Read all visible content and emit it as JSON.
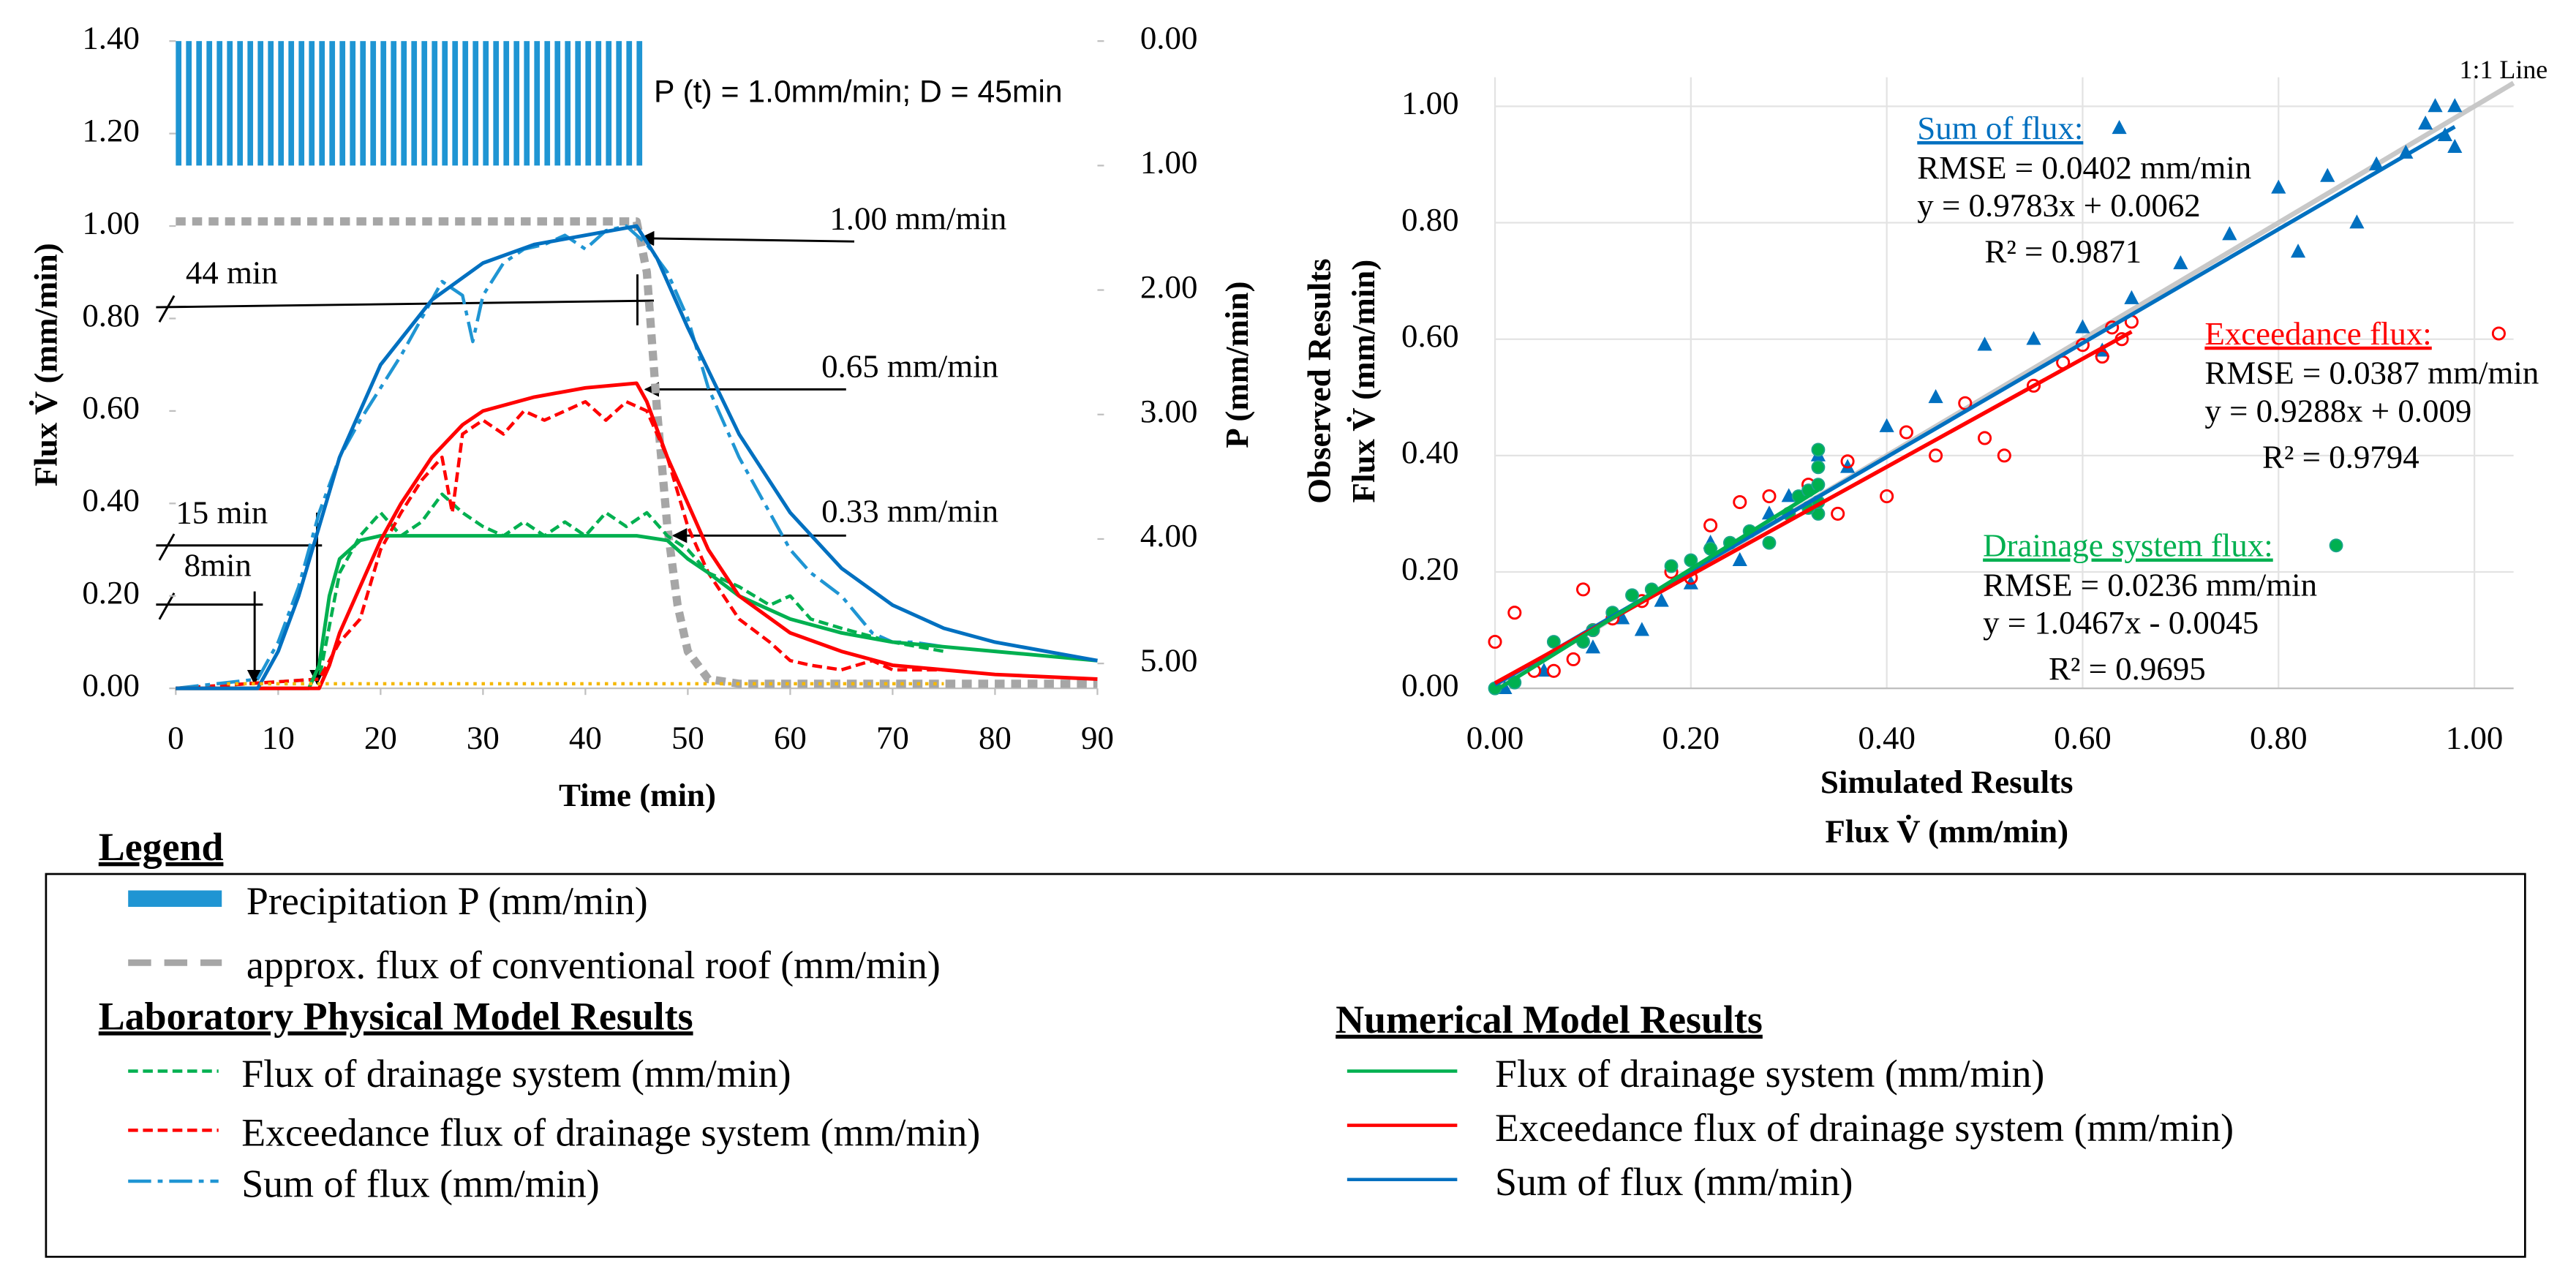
{
  "chart_data": [
    {
      "type": "line",
      "xlabel": "Time (min)",
      "ylabel": "Flux V̇ (mm/min)",
      "y2label": "P (mm/min)",
      "xlim": [
        0,
        90
      ],
      "xticks": [
        0,
        10,
        20,
        30,
        40,
        50,
        60,
        70,
        80,
        90
      ],
      "ylim": [
        0,
        1.4
      ],
      "yticks": [
        {
          "value": 0,
          "label": "0.00"
        },
        {
          "value": 0.2,
          "label": "0.20"
        },
        {
          "value": 0.4,
          "label": "0.40"
        },
        {
          "value": 0.6,
          "label": "0.60"
        },
        {
          "value": 0.8,
          "label": "0.80"
        },
        {
          "value": 1.0,
          "label": "1.00"
        },
        {
          "value": 1.2,
          "label": "1.20"
        },
        {
          "value": 1.4,
          "label": "1.40"
        }
      ],
      "y2lim": [
        0,
        5.2
      ],
      "y2_inverted": true,
      "y2ticks": [
        {
          "value": 0,
          "label": "0.00"
        },
        {
          "value": 1,
          "label": "1.00"
        },
        {
          "value": 2,
          "label": "2.00"
        },
        {
          "value": 3,
          "label": "3.00"
        },
        {
          "value": 4,
          "label": "4.00"
        },
        {
          "value": 5,
          "label": "5.00"
        }
      ],
      "annotations": [
        "P (t) = 1.0mm/min; D = 45min",
        "1.00 mm/min",
        "0.65 mm/min",
        "0.33 mm/min",
        "44 min",
        "15 min",
        "8min"
      ],
      "legend": {
        "title": "Legend"
      },
      "series": [
        {
          "name": "Precipitation P (mm/min)",
          "type": "bar",
          "axis": "y2",
          "color": "#1f95d3",
          "style": "bar",
          "x": [
            0,
            1,
            2,
            3,
            4,
            5,
            6,
            7,
            8,
            9,
            10,
            11,
            12,
            13,
            14,
            15,
            16,
            17,
            18,
            19,
            20,
            21,
            22,
            23,
            24,
            25,
            26,
            27,
            28,
            29,
            30,
            31,
            32,
            33,
            34,
            35,
            36,
            37,
            38,
            39,
            40,
            41,
            42,
            43,
            44,
            45
          ],
          "values": [
            1,
            1,
            1,
            1,
            1,
            1,
            1,
            1,
            1,
            1,
            1,
            1,
            1,
            1,
            1,
            1,
            1,
            1,
            1,
            1,
            1,
            1,
            1,
            1,
            1,
            1,
            1,
            1,
            1,
            1,
            1,
            1,
            1,
            1,
            1,
            1,
            1,
            1,
            1,
            1,
            1,
            1,
            1,
            1,
            1,
            1
          ]
        },
        {
          "name": "approx. flux of conventional roof (mm/min)",
          "color": "#a6a6a6",
          "style": "thickdash",
          "x": [
            0,
            45,
            46,
            47,
            48,
            49,
            50,
            52,
            55,
            90
          ],
          "values": [
            1.01,
            1.01,
            0.9,
            0.6,
            0.35,
            0.18,
            0.08,
            0.02,
            0.01,
            0.01
          ]
        },
        {
          "name": "Flux of drainage system (mm/min)",
          "group": "Laboratory Physical Model Results",
          "color": "#00b050",
          "style": "dash",
          "x": [
            0,
            14,
            16,
            18,
            20,
            22,
            24,
            26,
            28,
            30,
            32,
            34,
            36,
            38,
            40,
            42,
            44,
            46,
            48,
            50,
            52,
            55,
            58,
            60,
            62,
            65,
            70,
            75
          ],
          "values": [
            0,
            0.02,
            0.25,
            0.33,
            0.38,
            0.33,
            0.36,
            0.42,
            0.38,
            0.35,
            0.33,
            0.36,
            0.33,
            0.36,
            0.33,
            0.38,
            0.35,
            0.38,
            0.33,
            0.3,
            0.25,
            0.22,
            0.18,
            0.2,
            0.15,
            0.13,
            0.1,
            0.08
          ]
        },
        {
          "name": "Exceedance flux of drainage system (mm/min)",
          "group": "Laboratory Physical Model Results",
          "color": "#ff0000",
          "style": "dash",
          "x": [
            0,
            14,
            16,
            18,
            20,
            22,
            24,
            26,
            27,
            28,
            30,
            32,
            34,
            36,
            38,
            40,
            42,
            44,
            46,
            48,
            50,
            52,
            55,
            58,
            60,
            62,
            65,
            68,
            70,
            72,
            75
          ],
          "values": [
            0,
            0.02,
            0.1,
            0.15,
            0.3,
            0.38,
            0.45,
            0.5,
            0.38,
            0.55,
            0.58,
            0.55,
            0.6,
            0.58,
            0.6,
            0.62,
            0.58,
            0.62,
            0.6,
            0.5,
            0.35,
            0.25,
            0.15,
            0.1,
            0.06,
            0.05,
            0.04,
            0.06,
            0.04,
            0.04,
            0.04
          ]
        },
        {
          "name": "Sum of flux (mm/min)",
          "group": "Laboratory Physical Model Results",
          "color": "#1f95d3",
          "style": "dashdot",
          "x": [
            0,
            8,
            10,
            12,
            14,
            16,
            18,
            20,
            22,
            24,
            26,
            28,
            29,
            30,
            32,
            34,
            36,
            38,
            40,
            42,
            44,
            46,
            48,
            50,
            52,
            55,
            58,
            60,
            62,
            65,
            68,
            70,
            72,
            75
          ],
          "values": [
            0,
            0.02,
            0.1,
            0.22,
            0.38,
            0.5,
            0.58,
            0.65,
            0.72,
            0.8,
            0.88,
            0.85,
            0.75,
            0.85,
            0.92,
            0.95,
            0.96,
            0.98,
            0.95,
            0.99,
            1.0,
            0.96,
            0.9,
            0.8,
            0.65,
            0.5,
            0.38,
            0.3,
            0.25,
            0.2,
            0.12,
            0.1,
            0.1,
            0.09
          ]
        },
        {
          "name": "Flux of drainage system (mm/min)",
          "group": "Numerical Model Results",
          "color": "#00b050",
          "style": "solid",
          "x": [
            0,
            13,
            14,
            15,
            16,
            18,
            20,
            25,
            30,
            35,
            40,
            45,
            48,
            50,
            52,
            55,
            60,
            65,
            70,
            75,
            80,
            85,
            90
          ],
          "values": [
            0,
            0,
            0.05,
            0.2,
            0.28,
            0.32,
            0.33,
            0.33,
            0.33,
            0.33,
            0.33,
            0.33,
            0.32,
            0.28,
            0.25,
            0.2,
            0.15,
            0.12,
            0.1,
            0.09,
            0.08,
            0.07,
            0.06
          ]
        },
        {
          "name": "Exceedance flux of drainage system (mm/min)",
          "group": "Numerical Model Results",
          "color": "#ff0000",
          "style": "solid",
          "x": [
            0,
            14,
            15,
            16,
            18,
            20,
            22,
            25,
            28,
            30,
            35,
            40,
            45,
            46,
            48,
            50,
            52,
            55,
            60,
            65,
            70,
            75,
            80,
            90
          ],
          "values": [
            0,
            0,
            0.05,
            0.12,
            0.22,
            0.32,
            0.4,
            0.5,
            0.57,
            0.6,
            0.63,
            0.65,
            0.66,
            0.62,
            0.5,
            0.4,
            0.3,
            0.2,
            0.12,
            0.08,
            0.05,
            0.04,
            0.03,
            0.02
          ]
        },
        {
          "name": "Sum of flux (mm/min)",
          "group": "Numerical Model Results",
          "color": "#0070c0",
          "style": "solid",
          "x": [
            0,
            8,
            10,
            12,
            14,
            16,
            18,
            20,
            25,
            30,
            35,
            40,
            45,
            47,
            50,
            55,
            60,
            65,
            70,
            75,
            80,
            85,
            90
          ],
          "values": [
            0,
            0,
            0.08,
            0.2,
            0.35,
            0.5,
            0.6,
            0.7,
            0.84,
            0.92,
            0.96,
            0.98,
            1.0,
            0.93,
            0.78,
            0.55,
            0.38,
            0.26,
            0.18,
            0.13,
            0.1,
            0.08,
            0.06
          ]
        },
        {
          "color": "#f5b800",
          "style": "dot",
          "x": [
            5,
            75
          ],
          "values": [
            0.01,
            0.01
          ]
        }
      ]
    },
    {
      "type": "scatter",
      "xlabel": [
        "Simulated Results",
        "Flux V̇ (mm/min)"
      ],
      "ylabel": [
        "Observed Results",
        "Flux V̇ (mm/min)"
      ],
      "xlim": [
        0,
        1.04
      ],
      "ylim": [
        0,
        1.05
      ],
      "xticks": [
        {
          "value": 0,
          "label": "0.00"
        },
        {
          "value": 0.2,
          "label": "0.20"
        },
        {
          "value": 0.4,
          "label": "0.40"
        },
        {
          "value": 0.6,
          "label": "0.60"
        },
        {
          "value": 0.8,
          "label": "0.80"
        },
        {
          "value": 1.0,
          "label": "1.00"
        }
      ],
      "yticks": [
        {
          "value": 0,
          "label": "0.00"
        },
        {
          "value": 0.2,
          "label": "0.20"
        },
        {
          "value": 0.4,
          "label": "0.40"
        },
        {
          "value": 0.6,
          "label": "0.60"
        },
        {
          "value": 0.8,
          "label": "0.80"
        },
        {
          "value": 1.0,
          "label": "1.00"
        }
      ],
      "grid": true,
      "one_to_one_label": "1:1 Line",
      "series": [
        {
          "name": "Sum of flux:",
          "color": "#0070c0",
          "marker": "triangle",
          "x": [
            0.01,
            0.05,
            0.1,
            0.13,
            0.15,
            0.17,
            0.2,
            0.22,
            0.25,
            0.28,
            0.3,
            0.33,
            0.36,
            0.4,
            0.45,
            0.5,
            0.55,
            0.6,
            0.62,
            0.65,
            0.7,
            0.75,
            0.8,
            0.82,
            0.85,
            0.88,
            0.9,
            0.93,
            0.96,
            0.97,
            0.98,
            0.98,
            0.95
          ],
          "values": [
            0.0,
            0.03,
            0.07,
            0.12,
            0.1,
            0.15,
            0.18,
            0.25,
            0.22,
            0.3,
            0.33,
            0.4,
            0.38,
            0.45,
            0.5,
            0.59,
            0.6,
            0.62,
            0.58,
            0.67,
            0.73,
            0.78,
            0.86,
            0.75,
            0.88,
            0.8,
            0.9,
            0.92,
            1.0,
            0.95,
            0.93,
            1.0,
            0.97
          ],
          "trendline": {
            "slope": 0.9783,
            "intercept": 0.0062,
            "label": "y = 0.9783x + 0.0062",
            "r2_label": "R² = 0.9871",
            "rmse_label": "RMSE = 0.0402 mm/min"
          }
        },
        {
          "name": "Exceedance flux:",
          "color": "#ff0000",
          "marker": "open-circle",
          "x": [
            0.0,
            0.02,
            0.04,
            0.06,
            0.08,
            0.09,
            0.1,
            0.12,
            0.15,
            0.18,
            0.2,
            0.22,
            0.25,
            0.28,
            0.3,
            0.32,
            0.35,
            0.36,
            0.4,
            0.42,
            0.45,
            0.48,
            0.5,
            0.52,
            0.55,
            0.58,
            0.6,
            0.62,
            0.64,
            0.65,
            0.63
          ],
          "values": [
            0.08,
            0.13,
            0.03,
            0.03,
            0.05,
            0.17,
            0.1,
            0.12,
            0.15,
            0.2,
            0.19,
            0.28,
            0.32,
            0.33,
            0.3,
            0.35,
            0.3,
            0.39,
            0.33,
            0.44,
            0.4,
            0.49,
            0.43,
            0.4,
            0.52,
            0.56,
            0.59,
            0.57,
            0.6,
            0.63,
            0.62
          ],
          "trendline": {
            "slope": 0.9288,
            "intercept": 0.009,
            "label": "y = 0.9288x + 0.009",
            "r2_label": "R² = 0.9794",
            "rmse_label": "RMSE = 0.0387 mm/min"
          }
        },
        {
          "name": "Drainage system flux:",
          "color": "#00b050",
          "marker": "circle",
          "x": [
            0.0,
            0.02,
            0.06,
            0.09,
            0.1,
            0.12,
            0.14,
            0.16,
            0.18,
            0.2,
            0.22,
            0.24,
            0.26,
            0.28,
            0.3,
            0.31,
            0.32,
            0.33,
            0.33,
            0.33,
            0.33,
            0.32,
            0.33
          ],
          "values": [
            0.0,
            0.01,
            0.08,
            0.08,
            0.1,
            0.13,
            0.16,
            0.17,
            0.21,
            0.22,
            0.24,
            0.25,
            0.27,
            0.25,
            0.3,
            0.33,
            0.34,
            0.35,
            0.38,
            0.41,
            0.3,
            0.31,
            0.32
          ],
          "trendline": {
            "slope": 1.0467,
            "intercept": -0.0045,
            "label": "y = 1.0467x - 0.0045",
            "r2_label": "R² = 0.9695",
            "rmse_label": "RMSE = 0.0236 mm/min"
          }
        }
      ]
    }
  ]
}
